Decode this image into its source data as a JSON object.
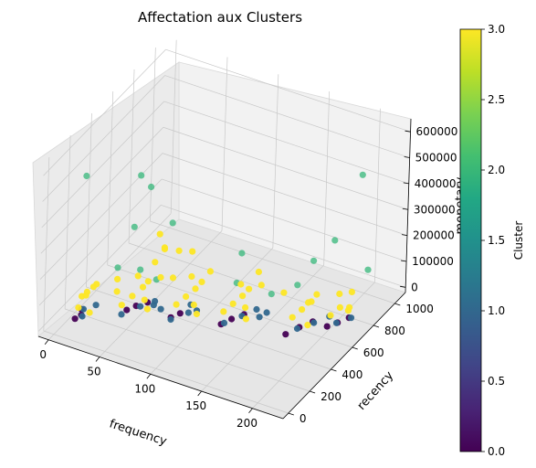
{
  "chart_data": {
    "type": "scatter",
    "title": "Affectation aux Clusters",
    "xlabel": "frequency",
    "ylabel": "recency",
    "zlabel": "monetary",
    "x_ticks": [
      "0",
      "50",
      "100",
      "150",
      "200"
    ],
    "y_ticks": [
      "0",
      "200",
      "400",
      "600",
      "800",
      "1000"
    ],
    "z_ticks": [
      "0",
      "100000",
      "200000",
      "300000",
      "400000",
      "500000",
      "600000"
    ],
    "xlim": [
      -10,
      230
    ],
    "ylim": [
      -50,
      1100
    ],
    "zlim": [
      -20000,
      650000
    ],
    "colorbar": {
      "label": "Cluster",
      "ticks": [
        "0.0",
        "0.5",
        "1.0",
        "1.5",
        "2.0",
        "2.5",
        "3.0"
      ],
      "range": [
        0,
        3
      ],
      "colormap": "viridis"
    },
    "grid": true,
    "cluster_colors": {
      "0": "#440154",
      "1": "#31688e",
      "2": "#35b779",
      "3": "#fde725"
    },
    "clusters": [
      {
        "cluster": 0,
        "points": [
          [
            8,
            120,
            0
          ],
          [
            10,
            160,
            0
          ],
          [
            6,
            200,
            0
          ],
          [
            40,
            300,
            0
          ],
          [
            44,
            350,
            0
          ],
          [
            50,
            400,
            0
          ],
          [
            78,
            350,
            0
          ],
          [
            82,
            400,
            0
          ],
          [
            120,
            420,
            0
          ],
          [
            124,
            480,
            0
          ],
          [
            130,
            540,
            0
          ],
          [
            175,
            500,
            0
          ],
          [
            180,
            580,
            0
          ],
          [
            186,
            650,
            0
          ],
          [
            200,
            650,
            0
          ],
          [
            205,
            700,
            0
          ],
          [
            210,
            760,
            0
          ]
        ]
      },
      {
        "cluster": 1,
        "points": [
          [
            12,
            150,
            2000
          ],
          [
            8,
            200,
            3000
          ],
          [
            14,
            260,
            1500
          ],
          [
            40,
            250,
            4000
          ],
          [
            48,
            350,
            3000
          ],
          [
            55,
            420,
            2500
          ],
          [
            80,
            330,
            3500
          ],
          [
            88,
            420,
            2000
          ],
          [
            84,
            480,
            2500
          ],
          [
            122,
            430,
            3000
          ],
          [
            130,
            520,
            2500
          ],
          [
            136,
            600,
            2000
          ],
          [
            180,
            560,
            3000
          ],
          [
            188,
            640,
            2500
          ],
          [
            195,
            720,
            2000
          ],
          [
            205,
            690,
            3000
          ],
          [
            212,
            760,
            2500
          ],
          [
            60,
            360,
            20000
          ],
          [
            70,
            330,
            30000
          ],
          [
            95,
            430,
            15000
          ],
          [
            145,
            540,
            10000
          ],
          [
            150,
            560,
            25000
          ]
        ]
      },
      {
        "cluster": 2,
        "points": [
          [
            15,
            120,
            560000
          ],
          [
            60,
            150,
            410000
          ],
          [
            28,
            520,
            410000
          ],
          [
            40,
            500,
            390000
          ],
          [
            80,
            320,
            380000
          ],
          [
            120,
            560,
            100000
          ],
          [
            115,
            650,
            170000
          ],
          [
            170,
            650,
            120000
          ],
          [
            170,
            800,
            150000
          ],
          [
            180,
            900,
            200000
          ],
          [
            205,
            980,
            85000
          ],
          [
            195,
            1000,
            430000
          ],
          [
            30,
            300,
            150000
          ],
          [
            50,
            320,
            160000
          ],
          [
            60,
            380,
            110000
          ],
          [
            150,
            600,
            80000
          ]
        ]
      },
      {
        "cluster": 3,
        "points": [
          [
            8,
            150,
            30000
          ],
          [
            6,
            200,
            50000
          ],
          [
            12,
            180,
            70000
          ],
          [
            5,
            260,
            40000
          ],
          [
            10,
            300,
            60000
          ],
          [
            15,
            220,
            90000
          ],
          [
            18,
            160,
            20000
          ],
          [
            20,
            400,
            50000
          ],
          [
            25,
            350,
            30000
          ],
          [
            40,
            250,
            40000
          ],
          [
            45,
            300,
            60000
          ],
          [
            50,
            350,
            80000
          ],
          [
            42,
            380,
            100000
          ],
          [
            55,
            320,
            50000
          ],
          [
            60,
            300,
            30000
          ],
          [
            48,
            420,
            70000
          ],
          [
            58,
            440,
            90000
          ],
          [
            50,
            460,
            130000
          ],
          [
            55,
            500,
            170000
          ],
          [
            65,
            540,
            160000
          ],
          [
            45,
            600,
            120000
          ],
          [
            62,
            520,
            60000
          ],
          [
            80,
            380,
            40000
          ],
          [
            85,
            420,
            60000
          ],
          [
            90,
            460,
            80000
          ],
          [
            82,
            500,
            100000
          ],
          [
            95,
            400,
            50000
          ],
          [
            100,
            380,
            30000
          ],
          [
            88,
            540,
            70000
          ],
          [
            94,
            560,
            110000
          ],
          [
            120,
            440,
            40000
          ],
          [
            125,
            480,
            60000
          ],
          [
            130,
            520,
            80000
          ],
          [
            124,
            560,
            100000
          ],
          [
            135,
            500,
            50000
          ],
          [
            140,
            460,
            30000
          ],
          [
            128,
            600,
            70000
          ],
          [
            138,
            620,
            90000
          ],
          [
            132,
            650,
            120000
          ],
          [
            175,
            560,
            40000
          ],
          [
            180,
            600,
            60000
          ],
          [
            185,
            640,
            80000
          ],
          [
            178,
            680,
            50000
          ],
          [
            190,
            560,
            30000
          ],
          [
            182,
            720,
            70000
          ],
          [
            200,
            680,
            30000
          ],
          [
            205,
            720,
            50000
          ],
          [
            210,
            760,
            40000
          ],
          [
            215,
            700,
            60000
          ],
          [
            208,
            800,
            80000
          ],
          [
            202,
            740,
            90000
          ],
          [
            30,
            700,
            110000
          ],
          [
            70,
            620,
            130000
          ],
          [
            160,
            620,
            90000
          ]
        ]
      }
    ]
  }
}
